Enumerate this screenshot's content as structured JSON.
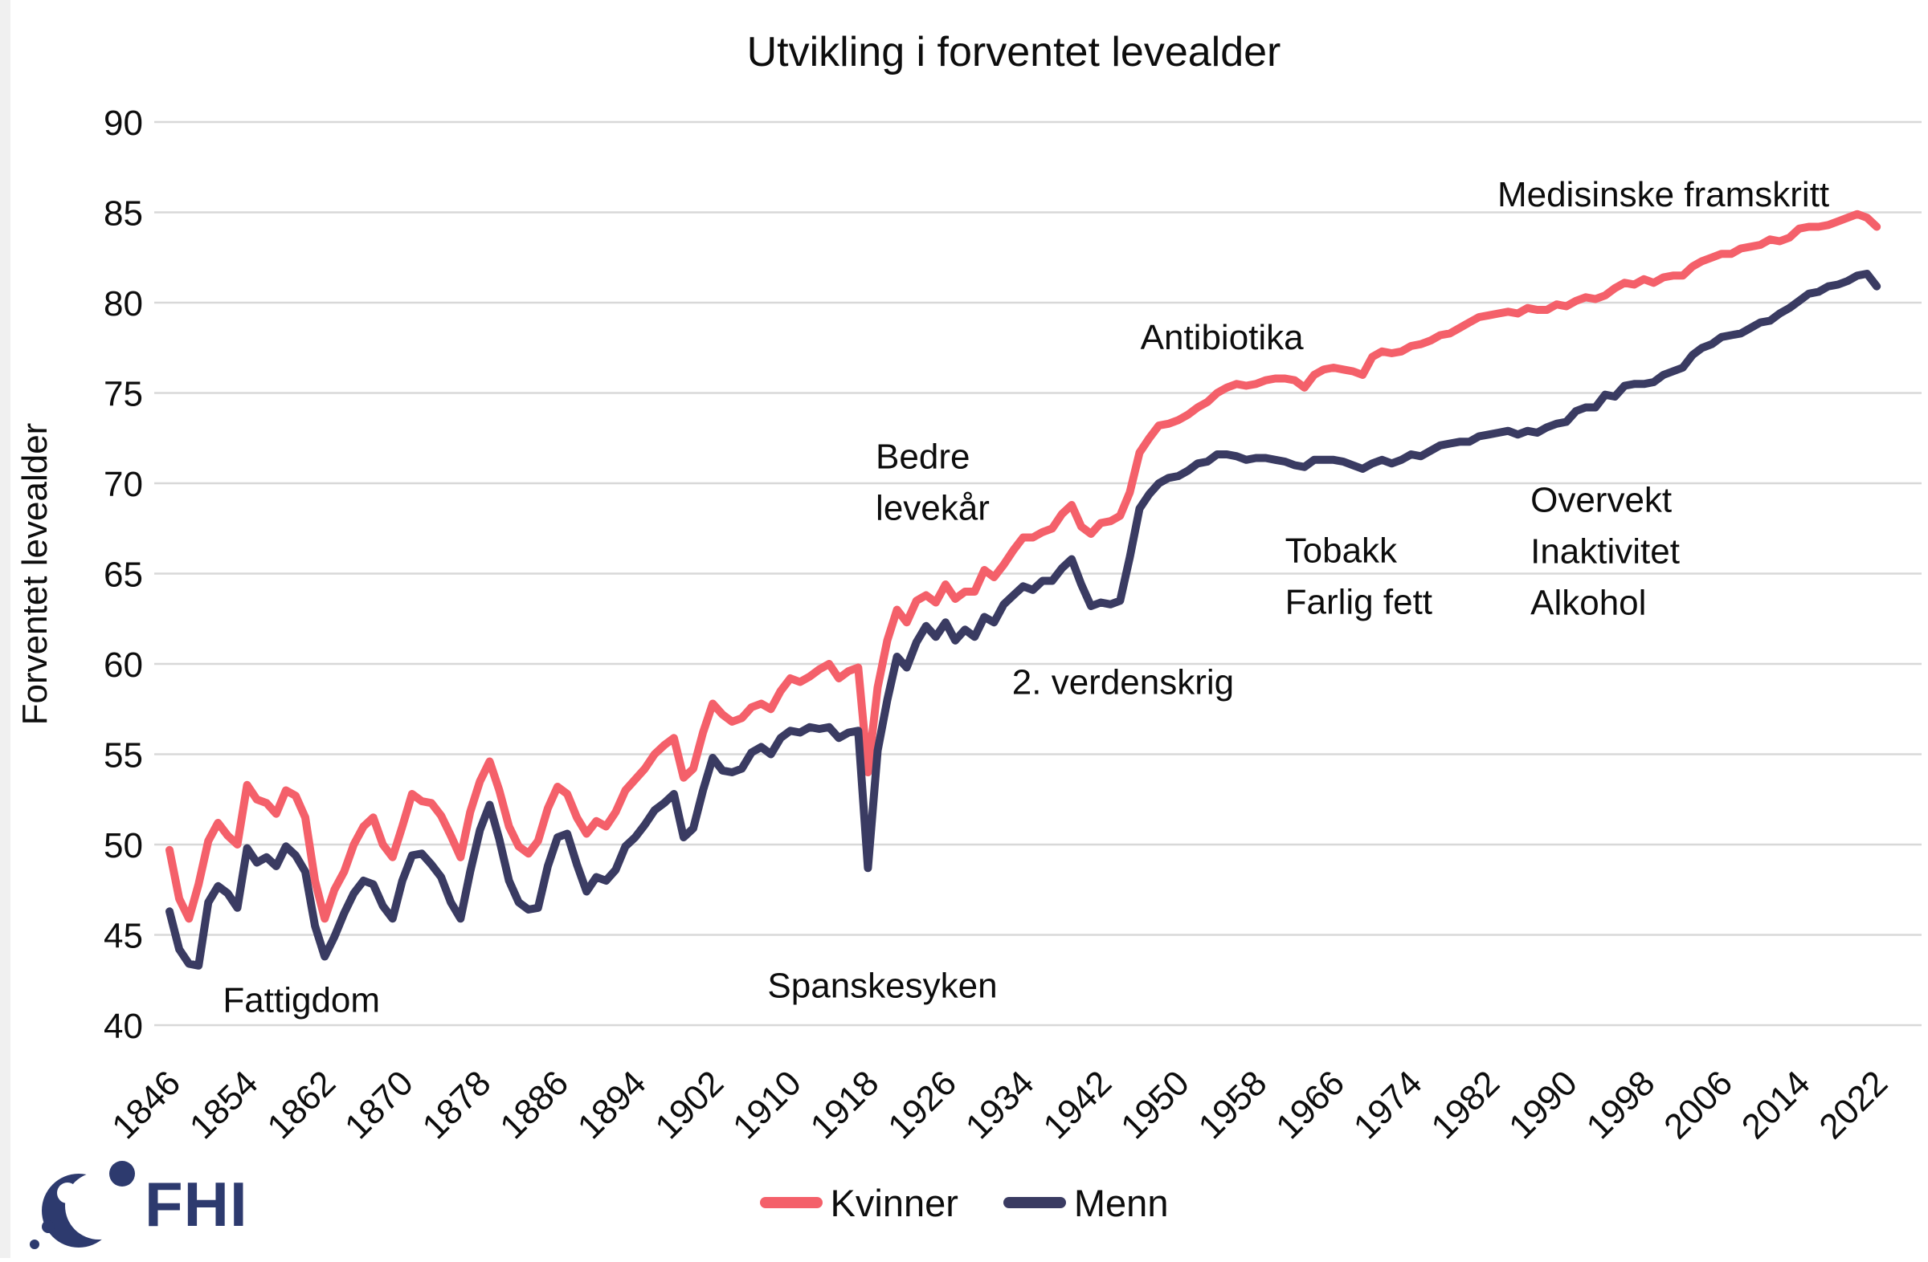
{
  "title": "Utvikling i forventet levealder",
  "y_axis": {
    "label": "Forventet levealder",
    "ticks": [
      90,
      85,
      80,
      75,
      70,
      65,
      60,
      55,
      50,
      45,
      40
    ]
  },
  "x_axis": {
    "ticks": [
      "1846",
      "1854",
      "1862",
      "1870",
      "1878",
      "1886",
      "1894",
      "1902",
      "1910",
      "1918",
      "1926",
      "1934",
      "1942",
      "1950",
      "1958",
      "1966",
      "1974",
      "1982",
      "1990",
      "1998",
      "2006",
      "2014",
      "2022"
    ]
  },
  "legend": {
    "items": [
      {
        "label": "Kvinner"
      },
      {
        "label": "Menn"
      }
    ]
  },
  "logo": {
    "text": "FHI"
  },
  "colors": {
    "women": "#F4606A",
    "men": "#3A3B62",
    "grid": "#D8D8D8",
    "text": "#0d0d0d",
    "logo": "#2D3A6E"
  },
  "chart_data": {
    "type": "line",
    "title": "Utvikling i forventet levealder",
    "xlabel": "",
    "ylabel": "Forventet levealder",
    "ylim": [
      40,
      90
    ],
    "xlim": [
      1846,
      2022
    ],
    "x_start": 1846,
    "x_step": 1,
    "grid": "horizontal",
    "legend_position": "bottom",
    "series": [
      {
        "name": "Kvinner",
        "color": "#F4606A",
        "values": [
          49.7,
          47.0,
          45.9,
          47.8,
          50.2,
          51.2,
          50.5,
          50.0,
          53.3,
          52.5,
          52.3,
          51.7,
          53.0,
          52.7,
          51.5,
          48.0,
          45.9,
          47.5,
          48.5,
          50.0,
          51.0,
          51.5,
          50.0,
          49.3,
          51.0,
          52.8,
          52.4,
          52.3,
          51.6,
          50.5,
          49.3,
          51.8,
          53.5,
          54.6,
          53.0,
          51.0,
          49.9,
          49.5,
          50.2,
          52.0,
          53.2,
          52.8,
          51.5,
          50.6,
          51.3,
          51.0,
          51.8,
          53.0,
          53.6,
          54.2,
          55.0,
          55.5,
          55.9,
          53.7,
          54.2,
          56.2,
          57.8,
          57.2,
          56.8,
          57.0,
          57.6,
          57.8,
          57.5,
          58.5,
          59.2,
          59.0,
          59.3,
          59.7,
          60.0,
          59.2,
          59.6,
          59.8,
          54.0,
          58.7,
          61.3,
          63.0,
          62.3,
          63.5,
          63.8,
          63.4,
          64.4,
          63.6,
          64.0,
          64.0,
          65.2,
          64.8,
          65.5,
          66.3,
          67.0,
          67.0,
          67.3,
          67.5,
          68.3,
          68.8,
          67.6,
          67.2,
          67.8,
          67.9,
          68.2,
          69.5,
          71.7,
          72.5,
          73.2,
          73.3,
          73.5,
          73.8,
          74.2,
          74.5,
          75.0,
          75.3,
          75.5,
          75.4,
          75.5,
          75.7,
          75.8,
          75.8,
          75.7,
          75.3,
          76.0,
          76.3,
          76.4,
          76.3,
          76.2,
          76.0,
          77.0,
          77.3,
          77.2,
          77.3,
          77.6,
          77.7,
          77.9,
          78.2,
          78.3,
          78.6,
          78.9,
          79.2,
          79.3,
          79.4,
          79.5,
          79.4,
          79.7,
          79.6,
          79.6,
          79.9,
          79.8,
          80.1,
          80.3,
          80.2,
          80.4,
          80.8,
          81.1,
          81.0,
          81.3,
          81.1,
          81.4,
          81.5,
          81.5,
          82.0,
          82.3,
          82.5,
          82.7,
          82.7,
          83.0,
          83.1,
          83.2,
          83.5,
          83.4,
          83.6,
          84.1,
          84.2,
          84.2,
          84.3,
          84.5,
          84.7,
          84.9,
          84.7,
          84.2
        ]
      },
      {
        "name": "Menn",
        "color": "#3A3B62",
        "values": [
          46.3,
          44.2,
          43.4,
          43.3,
          46.8,
          47.7,
          47.3,
          46.5,
          49.8,
          49.0,
          49.3,
          48.8,
          49.9,
          49.4,
          48.5,
          45.5,
          43.8,
          44.9,
          46.2,
          47.3,
          48.0,
          47.8,
          46.6,
          45.9,
          48.0,
          49.4,
          49.5,
          48.9,
          48.2,
          46.8,
          45.9,
          48.5,
          50.8,
          52.2,
          50.3,
          48.0,
          46.8,
          46.4,
          46.5,
          48.8,
          50.4,
          50.6,
          48.9,
          47.4,
          48.2,
          48.0,
          48.6,
          49.9,
          50.4,
          51.1,
          51.9,
          52.3,
          52.8,
          50.4,
          50.9,
          53.0,
          54.8,
          54.1,
          54.0,
          54.2,
          55.1,
          55.4,
          55.0,
          55.9,
          56.3,
          56.2,
          56.5,
          56.4,
          56.5,
          55.9,
          56.2,
          56.3,
          48.7,
          55.2,
          58.0,
          60.4,
          59.8,
          61.2,
          62.1,
          61.5,
          62.3,
          61.3,
          61.9,
          61.5,
          62.6,
          62.3,
          63.3,
          63.8,
          64.3,
          64.1,
          64.6,
          64.6,
          65.3,
          65.8,
          64.4,
          63.2,
          63.4,
          63.3,
          63.5,
          65.9,
          68.6,
          69.4,
          70.0,
          70.3,
          70.4,
          70.7,
          71.1,
          71.2,
          71.6,
          71.6,
          71.5,
          71.3,
          71.4,
          71.4,
          71.3,
          71.2,
          71.0,
          70.9,
          71.3,
          71.3,
          71.3,
          71.2,
          71.0,
          70.8,
          71.1,
          71.3,
          71.1,
          71.3,
          71.6,
          71.5,
          71.8,
          72.1,
          72.2,
          72.3,
          72.3,
          72.6,
          72.7,
          72.8,
          72.9,
          72.7,
          72.9,
          72.8,
          73.1,
          73.3,
          73.4,
          74.0,
          74.2,
          74.2,
          74.9,
          74.8,
          75.4,
          75.5,
          75.5,
          75.6,
          76.0,
          76.2,
          76.4,
          77.1,
          77.5,
          77.7,
          78.1,
          78.2,
          78.3,
          78.6,
          78.9,
          79.0,
          79.4,
          79.7,
          80.1,
          80.5,
          80.6,
          80.9,
          81.0,
          81.2,
          81.5,
          81.6,
          80.9
        ]
      }
    ],
    "annotations": [
      {
        "id": "fattigdom",
        "lines": [
          "Fattigdom"
        ],
        "year": 1851.5,
        "value": 41.4,
        "align": "start"
      },
      {
        "id": "spanskesyken",
        "lines": [
          "Spanskesyken"
        ],
        "year": 1919.5,
        "value": 42.2,
        "align": "middle"
      },
      {
        "id": "bedre-levekar",
        "lines": [
          "Bedre",
          "levekår"
        ],
        "year": 1918.8,
        "value": 71.5,
        "align": "start"
      },
      {
        "id": "verdenskrig",
        "lines": [
          "2. verdenskrig"
        ],
        "year": 1944.3,
        "value": 59.0,
        "align": "middle"
      },
      {
        "id": "antibiotika",
        "lines": [
          "Antibiotika"
        ],
        "year": 1954.5,
        "value": 78.1,
        "align": "middle"
      },
      {
        "id": "tobakk",
        "lines": [
          "Tobakk",
          "Farlig fett"
        ],
        "year": 1961.0,
        "value": 66.3,
        "align": "start"
      },
      {
        "id": "overvekt",
        "lines": [
          "Overvekt",
          "Inaktivitet",
          "Alkohol"
        ],
        "year": 1986.3,
        "value": 69.1,
        "align": "start"
      },
      {
        "id": "medisinske",
        "lines": [
          "Medisinske framskritt"
        ],
        "year": 2000.0,
        "value": 86.0,
        "align": "middle"
      }
    ]
  }
}
